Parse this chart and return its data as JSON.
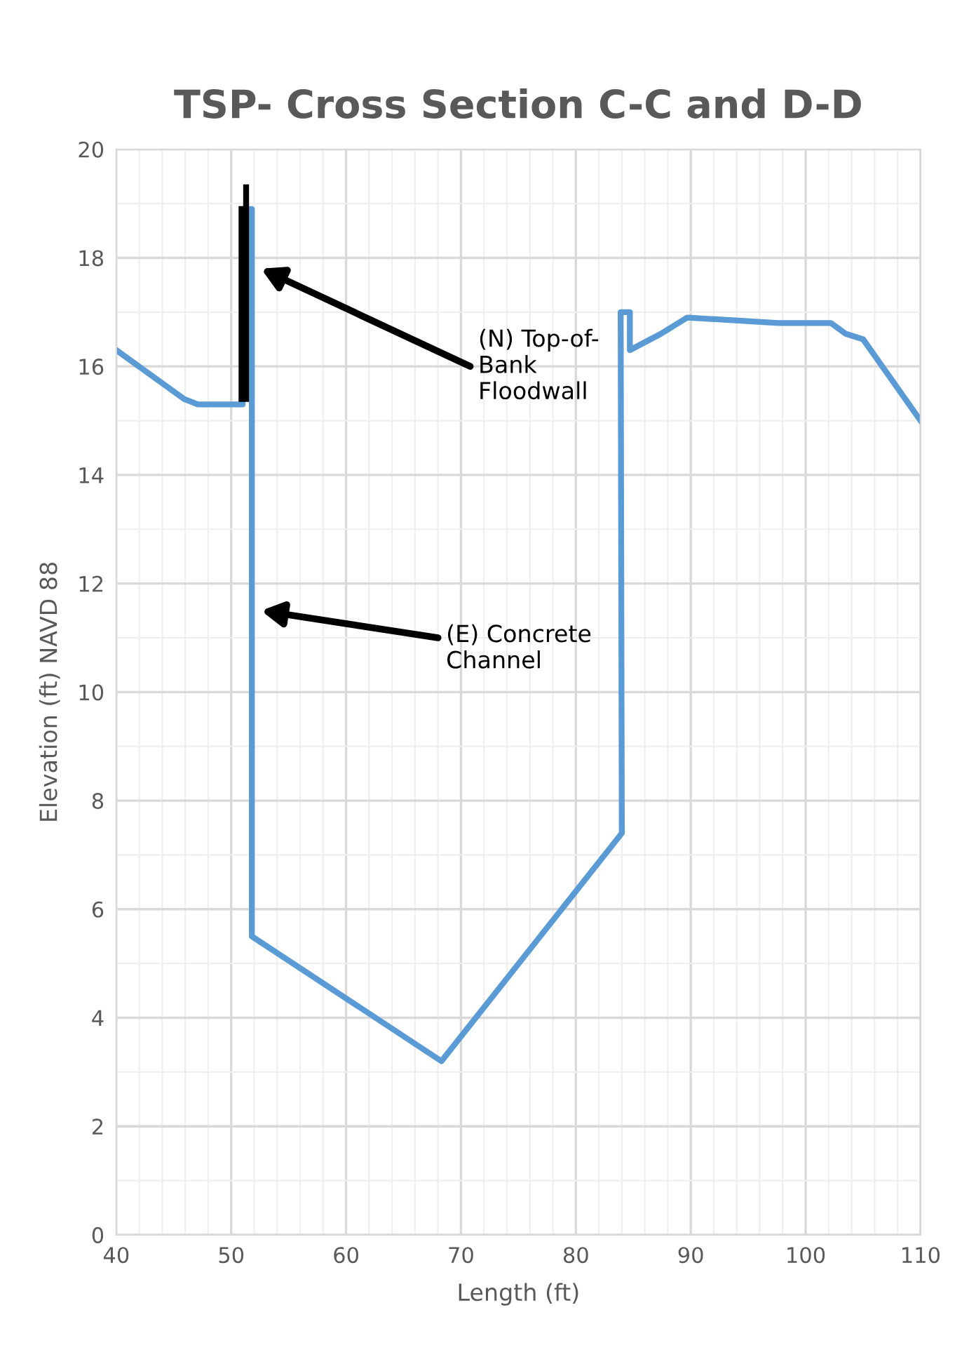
{
  "chart_data": {
    "type": "line",
    "title": "TSP- Cross Section C-C and D-D",
    "xlabel": "Length (ft)",
    "ylabel": "Elevation (ft) NAVD 88",
    "xlim": [
      40,
      110
    ],
    "xticks": [
      40,
      50,
      60,
      70,
      80,
      90,
      100,
      110
    ],
    "ylim": [
      0,
      20
    ],
    "yticks": [
      0,
      2,
      4,
      6,
      8,
      10,
      12,
      14,
      16,
      18,
      20
    ],
    "grid": true,
    "marker": "none",
    "line_style": "solid",
    "series": [
      {
        "color": "#5b9bd5",
        "x": [
          40,
          45.9,
          47.1,
          51.0,
          51.0,
          51.8,
          51.8,
          68.3,
          84.0,
          83.9,
          84.7,
          84.7,
          87.4,
          89.7,
          97.6,
          102.2,
          103.5,
          105.0,
          110
        ],
        "values": [
          16.3,
          15.4,
          15.3,
          15.3,
          18.9,
          18.9,
          5.5,
          3.2,
          7.4,
          17.0,
          17.0,
          16.3,
          16.6,
          16.9,
          16.8,
          16.8,
          16.6,
          16.5,
          15.0
        ]
      },
      {
        "color": "#000000",
        "x": [
          50.9,
          50.9,
          51.1,
          51.3,
          51.3
        ],
        "values": [
          15.4,
          18.9,
          null,
          15.4,
          19.3
        ]
      }
    ],
    "annotations": [
      "(N) Top-of-\nBank\nFloodwall",
      "(E) Concrete\nChannel"
    ]
  }
}
